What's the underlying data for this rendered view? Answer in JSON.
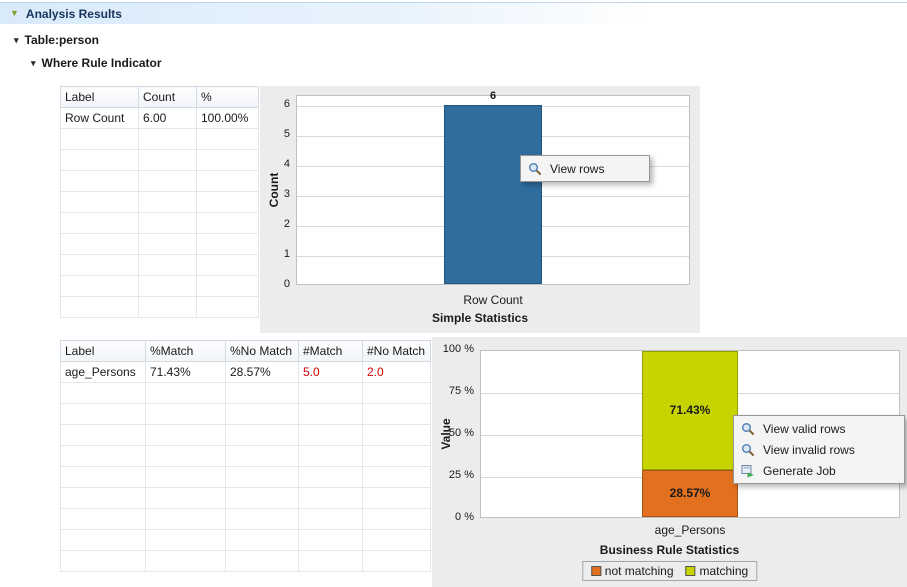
{
  "header": {
    "title": "Analysis Results"
  },
  "tree": {
    "table_label": "Table:person",
    "indicator_label": "Where Rule Indicator"
  },
  "simple_stats": {
    "table": {
      "columns": [
        "Label",
        "Count",
        "%"
      ],
      "rows": [
        [
          "Row Count",
          "6.00",
          "100.00%"
        ]
      ]
    },
    "menu": {
      "items": [
        {
          "label": "View rows",
          "icon": "magnifier-icon"
        }
      ]
    }
  },
  "business_rule": {
    "table": {
      "columns": [
        "Label",
        "%Match",
        "%No Match",
        "#Match",
        "#No Match"
      ],
      "rows": [
        [
          "age_Persons",
          "71.43%",
          "28.57%",
          "5.0",
          "2.0"
        ]
      ]
    },
    "menu": {
      "items": [
        {
          "label": "View valid rows",
          "icon": "magnifier-icon"
        },
        {
          "label": "View invalid rows",
          "icon": "magnifier-icon"
        },
        {
          "label": "Generate Job",
          "icon": "generate-job-icon"
        }
      ]
    }
  },
  "chart_data": [
    {
      "type": "bar",
      "title": "Simple Statistics",
      "categories": [
        "Row Count"
      ],
      "values": [
        6
      ],
      "bar_label": "6",
      "ylabel": "Count",
      "ylim": [
        0,
        6
      ],
      "yticks": [
        0,
        1,
        2,
        3,
        4,
        5,
        6
      ],
      "bar_color": "#2f6d9f",
      "grid": "horizontal",
      "legend_position": "none"
    },
    {
      "type": "stacked-bar",
      "title": "Business Rule Statistics",
      "categories": [
        "age_Persons"
      ],
      "series": [
        {
          "name": "not matching",
          "values": [
            28.57
          ],
          "label": "28.57%",
          "color": "#e1701f"
        },
        {
          "name": "matching",
          "values": [
            71.43
          ],
          "label": "71.43%",
          "color": "#c8d400"
        }
      ],
      "ylabel": "Value",
      "ylim": [
        0,
        100
      ],
      "yticks": [
        "0 %",
        "25 %",
        "50 %",
        "75 %",
        "100 %"
      ],
      "grid": "horizontal",
      "legend_position": "bottom"
    }
  ]
}
